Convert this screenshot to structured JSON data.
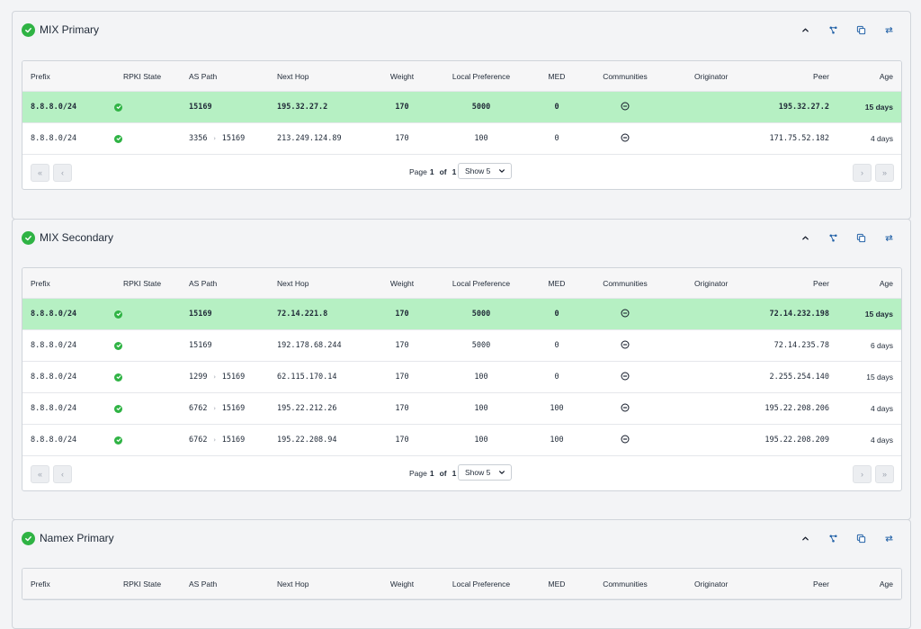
{
  "columns": {
    "prefix": "Prefix",
    "rpki": "RPKI State",
    "as_path": "AS Path",
    "next_hop": "Next Hop",
    "weight": "Weight",
    "local_pref": "Local Preference",
    "med": "MED",
    "communities": "Communities",
    "originator": "Originator",
    "peer": "Peer",
    "age": "Age"
  },
  "icons": {
    "status": "check-circle-icon",
    "collapse": "chevron-up-icon",
    "graph": "graph-icon",
    "copy": "copy-icon",
    "refresh": "refresh-icon",
    "rpki": "check-circle-icon",
    "communities": "minus-circle-icon"
  },
  "colors": {
    "accent_green": "#2fb344",
    "best_row": "#b6f0c3"
  },
  "panels": [
    {
      "title": "MIX Primary",
      "rows": [
        {
          "prefix": "8.8.8.0/24",
          "as_path": [
            "15169"
          ],
          "next_hop": "195.32.27.2",
          "weight": "170",
          "local_pref": "5000",
          "med": "0",
          "originator": "",
          "peer": "195.32.27.2",
          "age": "15 days",
          "best": true
        },
        {
          "prefix": "8.8.8.0/24",
          "as_path": [
            "3356",
            "15169"
          ],
          "next_hop": "213.249.124.89",
          "weight": "170",
          "local_pref": "100",
          "med": "0",
          "originator": "",
          "peer": "171.75.52.182",
          "age": "4 days",
          "best": false
        }
      ],
      "pagination": {
        "page_label": "Page",
        "current": "1",
        "of_label": "of",
        "total": "1",
        "show_label": "Show 5"
      }
    },
    {
      "title": "MIX Secondary",
      "rows": [
        {
          "prefix": "8.8.8.0/24",
          "as_path": [
            "15169"
          ],
          "next_hop": "72.14.221.8",
          "weight": "170",
          "local_pref": "5000",
          "med": "0",
          "originator": "",
          "peer": "72.14.232.198",
          "age": "15 days",
          "best": true
        },
        {
          "prefix": "8.8.8.0/24",
          "as_path": [
            "15169"
          ],
          "next_hop": "192.178.68.244",
          "weight": "170",
          "local_pref": "5000",
          "med": "0",
          "originator": "",
          "peer": "72.14.235.78",
          "age": "6 days",
          "best": false
        },
        {
          "prefix": "8.8.8.0/24",
          "as_path": [
            "1299",
            "15169"
          ],
          "next_hop": "62.115.170.14",
          "weight": "170",
          "local_pref": "100",
          "med": "0",
          "originator": "",
          "peer": "2.255.254.140",
          "age": "15 days",
          "best": false
        },
        {
          "prefix": "8.8.8.0/24",
          "as_path": [
            "6762",
            "15169"
          ],
          "next_hop": "195.22.212.26",
          "weight": "170",
          "local_pref": "100",
          "med": "100",
          "originator": "",
          "peer": "195.22.208.206",
          "age": "4 days",
          "best": false
        },
        {
          "prefix": "8.8.8.0/24",
          "as_path": [
            "6762",
            "15169"
          ],
          "next_hop": "195.22.208.94",
          "weight": "170",
          "local_pref": "100",
          "med": "100",
          "originator": "",
          "peer": "195.22.208.209",
          "age": "4 days",
          "best": false
        }
      ],
      "pagination": {
        "page_label": "Page",
        "current": "1",
        "of_label": "of",
        "total": "1",
        "show_label": "Show 5"
      }
    },
    {
      "title": "Namex Primary",
      "rows": [],
      "pagination": null
    }
  ]
}
